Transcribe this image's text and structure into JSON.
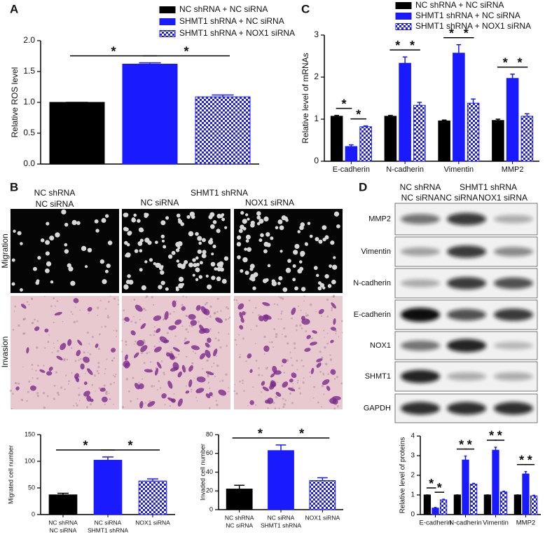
{
  "chart_data": [
    {
      "type": "bar",
      "panel": "A",
      "ylabel": "Relative ROS level",
      "categories": [
        null
      ],
      "series": [
        {
          "name": "NC shRNA + NC siRNA",
          "color": "#000000",
          "values": [
            1.0
          ],
          "errors": [
            0.0
          ]
        },
        {
          "name": "SHMT1 shRNA + NC siRNA",
          "color": "#1a1aff",
          "values": [
            1.62
          ],
          "errors": [
            0.02
          ]
        },
        {
          "name": "SHMT1 shRNA + NOX1 siRNA",
          "color": "#1a1aff",
          "pattern": "checker",
          "values": [
            1.09
          ],
          "errors": [
            0.03
          ]
        }
      ],
      "ylim": [
        0,
        2
      ],
      "yticks": [
        {
          "value": 0,
          "label": "0.0"
        },
        {
          "value": 0.5,
          "label": "0.5"
        },
        {
          "value": 1,
          "label": "1.0"
        },
        {
          "value": 1.5,
          "label": "1.5"
        },
        {
          "value": 2,
          "label": "2.0"
        }
      ],
      "annotations": [
        "*",
        "*"
      ],
      "legend": true
    },
    {
      "type": "bar",
      "panel": "C",
      "ylabel": "Relative level of mRNAs",
      "categories": [
        "E-cadherin",
        "N-cadherin",
        "Vimentin",
        "MMP2"
      ],
      "series": [
        {
          "name": "NC shRNA + NC siRNA",
          "color": "#000000",
          "values": [
            1.07,
            1.07,
            0.96,
            0.97
          ],
          "errors": [
            0.02,
            0.02,
            0.02,
            0.03
          ]
        },
        {
          "name": "SHMT1 shRNA + NC siRNA",
          "color": "#1a1aff",
          "values": [
            0.35,
            2.33,
            2.57,
            1.97
          ],
          "errors": [
            0.04,
            0.15,
            0.2,
            0.1
          ]
        },
        {
          "name": "SHMT1 shRNA + NOX1 siRNA",
          "color": "#1a1aff",
          "pattern": "checker",
          "values": [
            0.82,
            1.33,
            1.38,
            1.07
          ],
          "errors": [
            0.02,
            0.07,
            0.1,
            0.06
          ]
        }
      ],
      "ylim": [
        0,
        3
      ],
      "yticks": [
        0,
        1,
        2,
        3
      ],
      "annotations": [
        "*",
        "*",
        "*",
        "*",
        "*",
        "*",
        "*",
        "*"
      ],
      "legend": true
    },
    {
      "type": "bar",
      "ylabel": "Migrated cell number",
      "categories": [
        [
          "NC shRNA",
          "NC siRNA"
        ],
        [
          "NC siRNA",
          "SHMT1 shRNA"
        ],
        [
          "NOX1 siRNA"
        ]
      ],
      "values": [
        37,
        102,
        63
      ],
      "errors": [
        3,
        6,
        4
      ],
      "colors": [
        "#000000",
        "#1a1aff",
        "#1a1aff"
      ],
      "patterned": [
        false,
        false,
        true
      ],
      "ylim": [
        0,
        150
      ],
      "yticks": [
        0,
        50,
        100,
        150
      ],
      "annotations": [
        "*",
        "*"
      ]
    },
    {
      "type": "bar",
      "ylabel": "Invaded cell number",
      "categories": [
        [
          "NC shRNA",
          "NC siRNA"
        ],
        [
          "NC siRNA",
          "SHMT1 shRNA"
        ],
        [
          "NOX1 siRNA"
        ]
      ],
      "values": [
        22,
        63,
        31
      ],
      "errors": [
        4,
        6,
        3
      ],
      "colors": [
        "#000000",
        "#1a1aff",
        "#1a1aff"
      ],
      "patterned": [
        false,
        false,
        true
      ],
      "ylim": [
        0,
        80
      ],
      "yticks": [
        0,
        20,
        40,
        60,
        80
      ],
      "annotations": [
        "*",
        "*"
      ]
    },
    {
      "type": "bar",
      "ylabel": "Relative level of proteins",
      "categories": [
        "E-cadherin",
        "N-cadherin",
        "Vimentin",
        "MMP2"
      ],
      "series": [
        {
          "name": null,
          "color": "#000000",
          "values": [
            1,
            1,
            1,
            1
          ],
          "errors": [
            0,
            0,
            0,
            0
          ]
        },
        {
          "name": null,
          "color": "#1a1aff",
          "values": [
            0.33,
            2.78,
            3.28,
            2.07
          ],
          "errors": [
            0.03,
            0.2,
            0.15,
            0.12
          ]
        },
        {
          "name": null,
          "color": "#1a1aff",
          "pattern": "checker",
          "values": [
            0.75,
            1.55,
            1.15,
            0.95
          ],
          "errors": [
            0.03,
            0.04,
            0.04,
            0.03
          ]
        }
      ],
      "ylim": [
        0,
        4
      ],
      "yticks": [
        0,
        1,
        2,
        3,
        4
      ],
      "annotations": [
        "*",
        "*",
        "*",
        "*",
        "*",
        "*",
        "*",
        "*"
      ]
    }
  ],
  "micrographs": {
    "panel": "B",
    "header": {
      "left": [
        "NC shRNA",
        "NC siRNA"
      ],
      "group": "SHMT1 shRNA",
      "sub": [
        "NC siRNA",
        "NOX1 siRNA"
      ]
    },
    "rows": [
      "Migration",
      "Invasion"
    ]
  },
  "western_blot": {
    "panel": "D",
    "header": {
      "left": [
        "NC shRNA",
        "NC siRNA"
      ],
      "group": "SHMT1 shRNA",
      "sub": [
        "NC siRNA",
        "NOX1 siRNA"
      ]
    },
    "rows": [
      "MMP2",
      "Vimentin",
      "N-cadherin",
      "E-cadherin",
      "NOX1",
      "SHMT1",
      "GAPDH"
    ]
  }
}
